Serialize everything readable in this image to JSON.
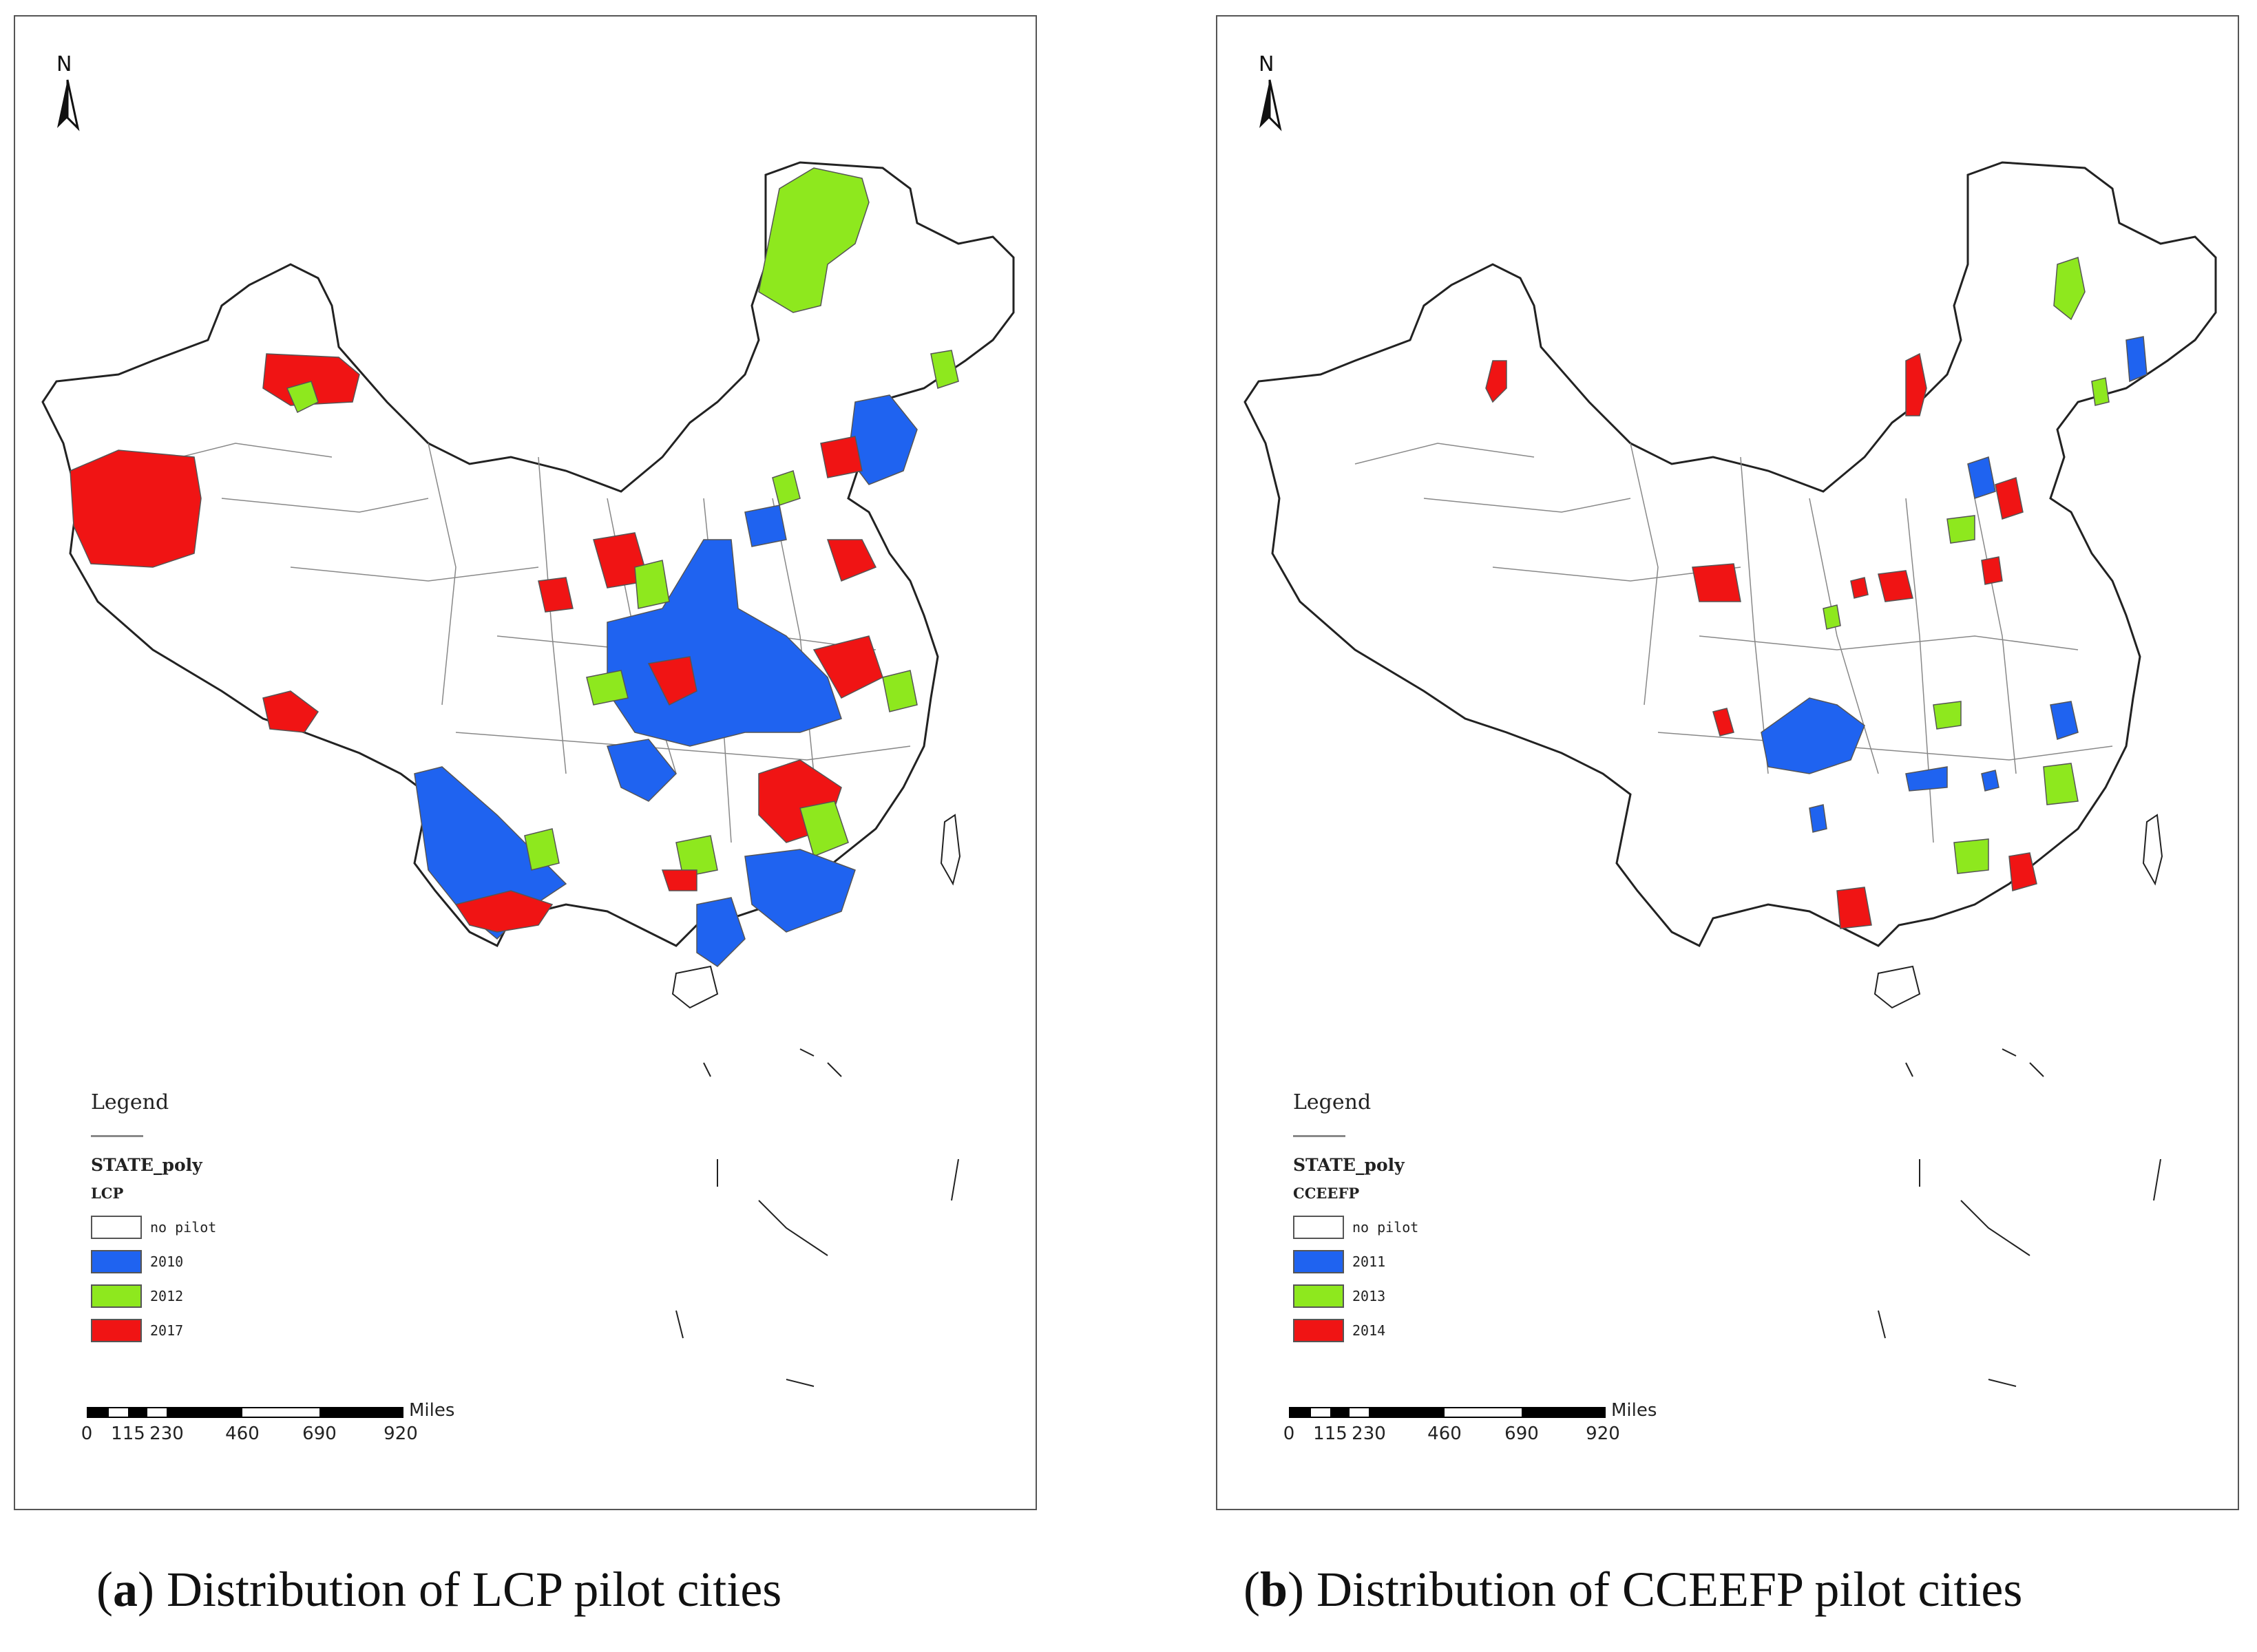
{
  "colors": {
    "no_pilot": "#ffffff",
    "blue": "#1f63f0",
    "green": "#8ee81e",
    "red": "#f01414",
    "border": "#555555"
  },
  "panels": [
    {
      "id": "a",
      "north": "N",
      "legend": {
        "title": "Legend",
        "layer": "STATE_poly",
        "field": "LCP",
        "items": [
          {
            "label": "no pilot",
            "color": "#ffffff"
          },
          {
            "label": "2010",
            "color": "#1f63f0"
          },
          {
            "label": "2012",
            "color": "#8ee81e"
          },
          {
            "label": "2017",
            "color": "#f01414"
          }
        ]
      },
      "scale": {
        "unit": "Miles",
        "ticks": [
          "0",
          "115",
          "230",
          "460",
          "690",
          "920"
        ]
      },
      "caption": {
        "letter": "a",
        "text": "Distribution of LCP pilot cities"
      }
    },
    {
      "id": "b",
      "north": "N",
      "legend": {
        "title": "Legend",
        "layer": "STATE_poly",
        "field": "CCEEFP",
        "items": [
          {
            "label": "no pilot",
            "color": "#ffffff"
          },
          {
            "label": "2011",
            "color": "#1f63f0"
          },
          {
            "label": "2013",
            "color": "#8ee81e"
          },
          {
            "label": "2014",
            "color": "#f01414"
          }
        ]
      },
      "scale": {
        "unit": "Miles",
        "ticks": [
          "0",
          "115",
          "230",
          "460",
          "690",
          "920"
        ]
      },
      "caption": {
        "letter": "b",
        "text": "Distribution of CCEEFP pilot cities"
      }
    }
  ]
}
